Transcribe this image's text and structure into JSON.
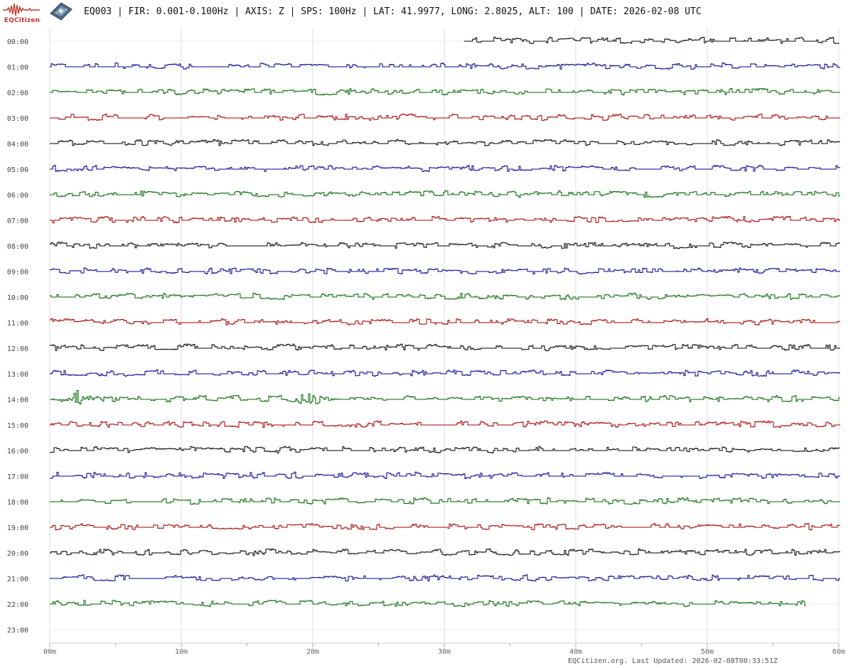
{
  "header": {
    "logo_text": "EQCitizen",
    "title": "EQ003 | FIR: 0.001-0.100Hz | AXIS: Z | SPS: 100Hz | LAT: 41.9977, LONG: 2.8025, ALT: 100 | DATE: 2026-02-08 UTC"
  },
  "footer": {
    "updated": "EQCitizen.org. Last Updated: 2026-02-08T00:33:51Z"
  },
  "colors": {
    "black": "#000000",
    "blue": "#00008b",
    "green": "#006400",
    "red": "#a00000",
    "grid": "#dddddd"
  },
  "chart_data": {
    "type": "line",
    "title": "",
    "xlabel": "",
    "ylabel": "",
    "x_ticks": [
      "00m",
      "10m",
      "20m",
      "30m",
      "40m",
      "50m",
      "60m"
    ],
    "xlim": [
      0,
      60
    ],
    "grid": true,
    "rows": [
      "00:00",
      "01:00",
      "02:00",
      "03:00",
      "04:00",
      "05:00",
      "06:00",
      "07:00",
      "08:00",
      "09:00",
      "10:00",
      "11:00",
      "12:00",
      "13:00",
      "14:00",
      "15:00",
      "16:00",
      "17:00",
      "18:00",
      "19:00",
      "20:00",
      "21:00",
      "22:00",
      "23:00"
    ],
    "color_cycle": [
      "#000000",
      "#00008b",
      "#006400",
      "#a00000"
    ],
    "row_coverage_minutes": [
      [
        31.5,
        60
      ],
      [
        0,
        60
      ],
      [
        0,
        60
      ],
      [
        0,
        60
      ],
      [
        0,
        60
      ],
      [
        0,
        60
      ],
      [
        0,
        60
      ],
      [
        0,
        60
      ],
      [
        0,
        60
      ],
      [
        0,
        60
      ],
      [
        0,
        60
      ],
      [
        0,
        60
      ],
      [
        0,
        60
      ],
      [
        0,
        60
      ],
      [
        0,
        60
      ],
      [
        0,
        60
      ],
      [
        0,
        60
      ],
      [
        0,
        60
      ],
      [
        0,
        60
      ],
      [
        0,
        60
      ],
      [
        0,
        60
      ],
      [
        0,
        60
      ],
      [
        0,
        57.5
      ],
      null
    ],
    "notable_events": [
      {
        "row": "14:00",
        "minute": 2.0
      },
      {
        "row": "14:00",
        "minute": 19.8
      }
    ]
  }
}
